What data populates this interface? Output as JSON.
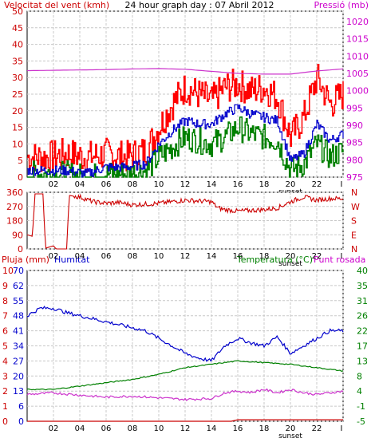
{
  "chart_data": [
    {
      "type": "line",
      "title": "24 hour graph day : 07 Abril 2012",
      "ylabel_left": "Velocitat del vent (kmh)",
      "ylabel_right": "Pressió (mb)",
      "x_ticks": [
        "02",
        "04",
        "06",
        "08",
        "10",
        "12",
        "14",
        "16",
        "18",
        "20",
        "22",
        "I"
      ],
      "x_annotation": "sunset",
      "y_left_ticks": [
        0,
        5,
        10,
        15,
        20,
        25,
        30,
        35,
        40,
        45,
        50
      ],
      "y_right_ticks": [
        975,
        980,
        985,
        990,
        995,
        1000,
        1005,
        1010,
        1015,
        1020
      ],
      "ylim_left": [
        0,
        50
      ],
      "ylim_right": [
        975,
        1023
      ],
      "grid": true,
      "colors": {
        "gust": "#ff0000",
        "avg": "#0000cc",
        "min": "#008000",
        "pressure": "#cc33cc",
        "left_axis": "#cc0000",
        "right_axis": "#cc00cc"
      },
      "series": [
        {
          "x": [
            0,
            1.5,
            3,
            4.5,
            6,
            7.5,
            9,
            10,
            11,
            12,
            13,
            14,
            15,
            16,
            17,
            18,
            19,
            20,
            21,
            22,
            23,
            24
          ],
          "values": [
            6,
            6,
            7,
            6,
            7,
            6,
            8,
            15,
            22,
            27,
            25,
            23,
            27,
            28,
            26,
            27,
            24,
            12,
            18,
            30,
            22,
            25
          ]
        },
        {
          "x": [
            0,
            1.5,
            3,
            4.5,
            6,
            7.5,
            9,
            10,
            11,
            12,
            13,
            14,
            15,
            16,
            17,
            18,
            19,
            20,
            21,
            22,
            23,
            24
          ],
          "values": [
            2,
            2,
            2,
            1,
            3,
            3,
            4,
            10,
            14,
            17,
            16,
            16,
            19,
            21,
            19,
            18,
            17,
            5,
            7,
            16,
            11,
            13
          ]
        },
        {
          "x": [
            0,
            1.5,
            3,
            4.5,
            6,
            7.5,
            9,
            10,
            11,
            12,
            13,
            14,
            15,
            16,
            17,
            18,
            19,
            20,
            21,
            22,
            23,
            24
          ],
          "values": [
            1,
            1,
            1,
            0,
            1,
            1,
            2,
            6,
            9,
            12,
            11,
            10,
            12,
            15,
            13,
            12,
            11,
            2,
            4,
            10,
            6,
            8
          ]
        },
        {
          "x": [
            0,
            2,
            4,
            6,
            8,
            10,
            12,
            14,
            16,
            18,
            20,
            22,
            24
          ],
          "values": [
            1005.8,
            1005.9,
            1006.0,
            1006.1,
            1006.3,
            1006.4,
            1006.2,
            1005.6,
            1005.0,
            1004.8,
            1004.8,
            1005.7,
            1006.3
          ]
        }
      ]
    },
    {
      "type": "scatter",
      "ylabel_right": [
        "N",
        "W",
        "S",
        "E",
        "N"
      ],
      "x_ticks": [
        "02",
        "04",
        "06",
        "08",
        "10",
        "12",
        "14",
        "16",
        "18",
        "20",
        "22",
        "I"
      ],
      "x_annotation": "sunset",
      "y_left_ticks": [
        0,
        90,
        180,
        270,
        360
      ],
      "ylim": [
        0,
        360
      ],
      "grid": true,
      "colors": {
        "direction": "#cc0000"
      },
      "series": [
        {
          "x": [
            0,
            0.4,
            0.6,
            1.2,
            1.4,
            2.0,
            2.2,
            3.0,
            3.2,
            4,
            5,
            6,
            7,
            8,
            9,
            10,
            11,
            12,
            13,
            14,
            14.5,
            15,
            16,
            17,
            18,
            19,
            20,
            21,
            22,
            23,
            24
          ],
          "values": [
            90,
            80,
            350,
            350,
            5,
            20,
            0,
            0,
            340,
            330,
            300,
            290,
            295,
            280,
            285,
            290,
            300,
            310,
            305,
            300,
            260,
            250,
            240,
            245,
            250,
            260,
            300,
            330,
            310,
            320,
            320
          ]
        }
      ]
    },
    {
      "type": "line",
      "ylabel_left_1": "Pluja (mm)",
      "ylabel_left_2": "Humitat",
      "ylabel_right_1": "Temperatura (°C)",
      "ylabel_right_2": "Punt rosada",
      "x_ticks": [
        "02",
        "04",
        "06",
        "08",
        "10",
        "12",
        "14",
        "16",
        "18",
        "20",
        "22",
        "I"
      ],
      "x_annotation": "sunset",
      "y_left_ticks_rain": [
        0,
        1,
        2,
        3,
        4,
        5,
        6,
        7,
        8,
        9,
        10
      ],
      "y_left_ticks_humidity": [
        0,
        6,
        13,
        20,
        27,
        34,
        41,
        48,
        55,
        62,
        70
      ],
      "y_right_ticks": [
        -5,
        -1,
        4,
        8,
        13,
        17,
        22,
        26,
        31,
        35,
        40
      ],
      "ylim_humidity": [
        0,
        100
      ],
      "ylim_temp": [
        -5,
        40
      ],
      "grid": true,
      "colors": {
        "humidity": "#0000cc",
        "temperature": "#008000",
        "dewpoint": "#cc33cc",
        "rain": "#cc0000",
        "left_axis_rain": "#cc0000",
        "left_axis_humidity": "#0000cc",
        "right_axis": "#008000"
      },
      "series": [
        {
          "x": [
            0,
            1,
            2,
            3,
            4,
            5,
            6,
            7,
            8,
            9,
            10,
            11,
            12,
            13,
            14,
            15,
            16,
            17,
            18,
            19,
            20,
            21,
            22,
            23,
            24
          ],
          "values": [
            70,
            75,
            75,
            72,
            70,
            68,
            66,
            64,
            62,
            60,
            55,
            50,
            45,
            42,
            40,
            50,
            55,
            52,
            50,
            56,
            45,
            50,
            55,
            60,
            60
          ]
        },
        {
          "x": [
            0,
            2,
            4,
            6,
            8,
            10,
            12,
            14,
            16,
            18,
            20,
            22,
            24
          ],
          "values": [
            4.5,
            4.5,
            5.5,
            6.5,
            7.5,
            9,
            11,
            12,
            13,
            12.5,
            12,
            11,
            10
          ]
        },
        {
          "x": [
            0,
            2,
            4,
            6,
            8,
            10,
            12,
            14,
            15,
            16,
            17,
            18,
            19,
            20,
            21,
            22,
            23,
            24
          ],
          "values": [
            3.0,
            3.5,
            2.8,
            2.2,
            2.5,
            2.0,
            1.5,
            1.8,
            3.5,
            4.0,
            3.6,
            4.5,
            3.5,
            4.5,
            3.5,
            3.0,
            3.5,
            4.0
          ]
        },
        {
          "x": [
            0,
            15.5,
            16,
            24
          ],
          "values": [
            0,
            0,
            0.1,
            0.1
          ]
        }
      ]
    }
  ]
}
